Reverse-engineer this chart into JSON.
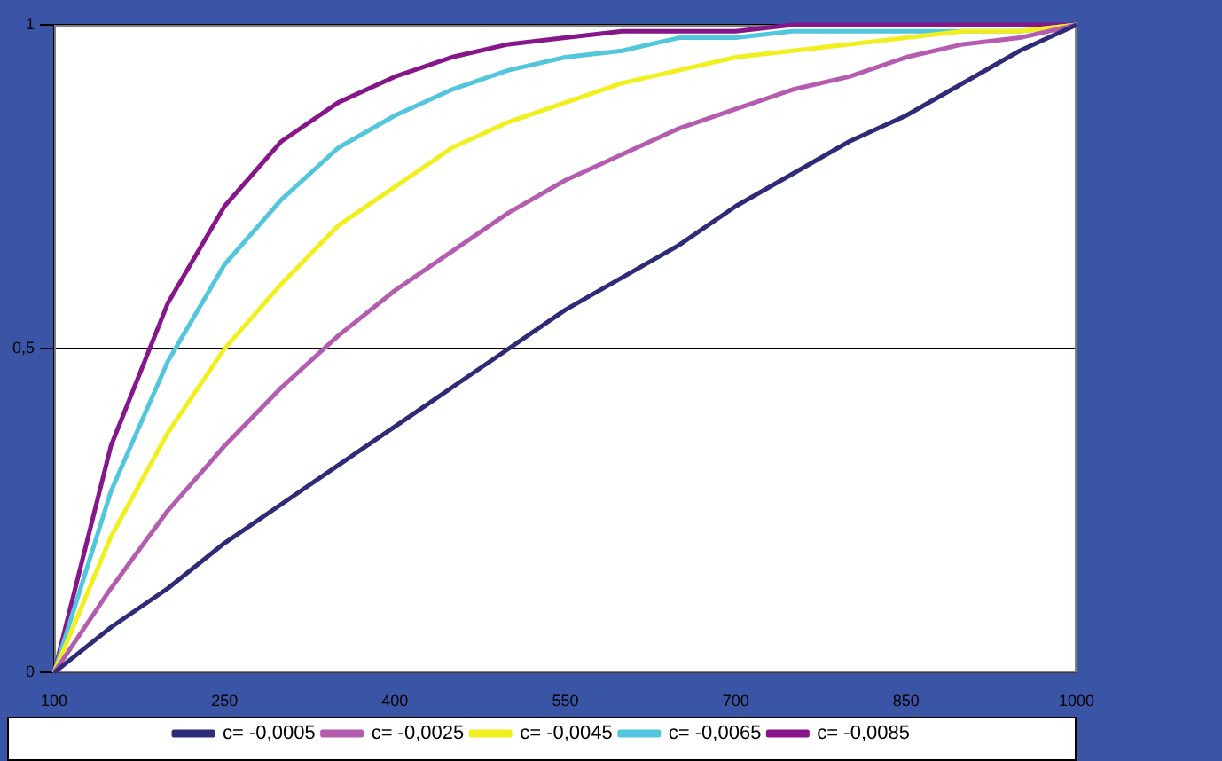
{
  "chart_data": {
    "type": "line",
    "x": [
      100,
      150,
      200,
      250,
      300,
      350,
      400,
      450,
      500,
      550,
      600,
      650,
      700,
      750,
      800,
      850,
      900,
      950,
      1000
    ],
    "xlim": [
      100,
      1000
    ],
    "xticks": [
      100,
      250,
      400,
      550,
      700,
      850,
      1000
    ],
    "ylim": [
      0,
      1
    ],
    "yticks": [
      0,
      {
        "value": 0.5,
        "label": "0,5"
      },
      1
    ],
    "grid": "y",
    "legend": "bottom",
    "marker": "none",
    "line_style": "solid",
    "series": [
      {
        "name": "c= -0,0005",
        "color": "#2e2c78",
        "values": [
          0,
          0.07,
          0.13,
          0.2,
          0.26,
          0.32,
          0.38,
          0.44,
          0.5,
          0.56,
          0.61,
          0.66,
          0.72,
          0.77,
          0.82,
          0.86,
          0.91,
          0.96,
          1
        ]
      },
      {
        "name": "c= -0,0025",
        "color": "#b35cb0",
        "values": [
          0,
          0.13,
          0.25,
          0.35,
          0.44,
          0.52,
          0.59,
          0.65,
          0.71,
          0.76,
          0.8,
          0.84,
          0.87,
          0.9,
          0.92,
          0.95,
          0.97,
          0.98,
          1
        ]
      },
      {
        "name": "c= -0,0045",
        "color": "#f2ef1e",
        "values": [
          0,
          0.21,
          0.37,
          0.5,
          0.6,
          0.69,
          0.75,
          0.81,
          0.85,
          0.88,
          0.91,
          0.93,
          0.95,
          0.96,
          0.97,
          0.98,
          0.99,
          0.99,
          1
        ]
      },
      {
        "name": "c= -0,0065",
        "color": "#52c6dc",
        "values": [
          0,
          0.28,
          0.48,
          0.63,
          0.73,
          0.81,
          0.86,
          0.9,
          0.93,
          0.95,
          0.96,
          0.98,
          0.98,
          0.99,
          0.99,
          0.99,
          0.99,
          0.99,
          1
        ]
      },
      {
        "name": "c= -0,0085",
        "color": "#86168a",
        "values": [
          0,
          0.35,
          0.57,
          0.72,
          0.82,
          0.88,
          0.92,
          0.95,
          0.97,
          0.98,
          0.99,
          0.99,
          0.99,
          1,
          1,
          1,
          1,
          1,
          1
        ]
      }
    ]
  }
}
